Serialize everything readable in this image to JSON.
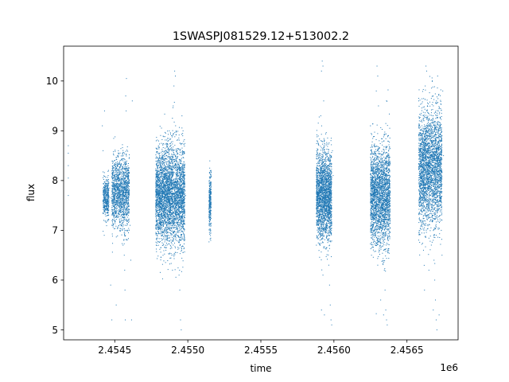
{
  "chart_data": {
    "type": "scatter",
    "title": "1SWASPJ081529.12+513002.2",
    "xlabel": "time",
    "ylabel": "flux",
    "x_offset_label": "1e6",
    "xlim": [
      2454150,
      2456850
    ],
    "ylim": [
      4.8,
      10.7
    ],
    "x_ticks": [
      2454500,
      2455000,
      2455500,
      2456000,
      2456500
    ],
    "x_tick_labels": [
      "2.4545",
      "2.4550",
      "2.4555",
      "2.4560",
      "2.4565"
    ],
    "y_ticks": [
      5,
      6,
      7,
      8,
      9,
      10
    ],
    "y_tick_labels": [
      "5",
      "6",
      "7",
      "8",
      "9",
      "10"
    ],
    "grid": false,
    "legend": "none",
    "marker_color": "#1f77b4",
    "series": [
      {
        "points": [
          [
            2454182,
            8.7
          ],
          [
            2454182,
            8.55
          ],
          [
            2454182,
            8.3
          ],
          [
            2454182,
            8.05
          ],
          [
            2454182,
            7.7
          ],
          [
            2454415,
            9.1
          ],
          [
            2454420,
            8.6
          ],
          [
            2454425,
            7.2
          ],
          [
            2454428,
            6.9
          ],
          [
            2454430,
            9.4
          ],
          [
            2454435,
            7.9
          ],
          [
            2454440,
            7.8
          ],
          [
            2454440,
            7.7
          ],
          [
            2454445,
            7.6
          ],
          [
            2454445,
            7.5
          ],
          [
            2454450,
            7.4
          ],
          [
            2454455,
            7.3
          ],
          [
            2454455,
            8.1
          ],
          [
            2454460,
            7.95
          ],
          [
            2454465,
            7.85
          ],
          [
            2454470,
            7.65
          ],
          [
            2454472,
            5.9
          ],
          [
            2454480,
            5.2
          ],
          [
            2454500,
            7.3
          ],
          [
            2454510,
            5.5
          ],
          [
            2454520,
            8.3
          ],
          [
            2454522,
            8.2
          ],
          [
            2454525,
            8.1
          ],
          [
            2454528,
            8.0
          ],
          [
            2454530,
            7.9
          ],
          [
            2454532,
            7.8
          ],
          [
            2454535,
            7.7
          ],
          [
            2454538,
            7.6
          ],
          [
            2454540,
            7.5
          ],
          [
            2454542,
            7.4
          ],
          [
            2454545,
            7.3
          ],
          [
            2454548,
            7.2
          ],
          [
            2454550,
            7.1
          ],
          [
            2454552,
            7.0
          ],
          [
            2454555,
            8.4
          ],
          [
            2454557,
            8.5
          ],
          [
            2454560,
            7.35
          ],
          [
            2454562,
            6.8
          ],
          [
            2454565,
            6.5
          ],
          [
            2454568,
            6.2
          ],
          [
            2454570,
            5.8
          ],
          [
            2454572,
            5.2
          ],
          [
            2454575,
            9.7
          ],
          [
            2454578,
            9.4
          ],
          [
            2454580,
            10.05
          ],
          [
            2454585,
            7.45
          ],
          [
            2454590,
            7.55
          ],
          [
            2454595,
            8.2
          ],
          [
            2454600,
            8.0
          ],
          [
            2454605,
            7.1
          ],
          [
            2454610,
            6.4
          ],
          [
            2454615,
            5.2
          ],
          [
            2454620,
            9.6
          ],
          [
            2454790,
            8.3
          ],
          [
            2454795,
            8.1
          ],
          [
            2454800,
            7.9
          ],
          [
            2454805,
            7.7
          ],
          [
            2454810,
            7.5
          ],
          [
            2454815,
            7.3
          ],
          [
            2454820,
            7.1
          ],
          [
            2454825,
            6.9
          ],
          [
            2454830,
            8.5
          ],
          [
            2454835,
            8.4
          ],
          [
            2454840,
            7.2
          ],
          [
            2454845,
            6.8
          ],
          [
            2454850,
            6.6
          ],
          [
            2454855,
            8.7
          ],
          [
            2454860,
            8.2
          ],
          [
            2454865,
            7.85
          ],
          [
            2454870,
            7.6
          ],
          [
            2454875,
            7.4
          ],
          [
            2454880,
            7.0
          ],
          [
            2454885,
            8.0
          ],
          [
            2454890,
            6.5
          ],
          [
            2454895,
            6.2
          ],
          [
            2454900,
            9.5
          ],
          [
            2454905,
            9.9
          ],
          [
            2454910,
            10.2
          ],
          [
            2454915,
            10.1
          ],
          [
            2454920,
            9.0
          ],
          [
            2454925,
            8.6
          ],
          [
            2454930,
            7.8
          ],
          [
            2454935,
            7.3
          ],
          [
            2454940,
            6.1
          ],
          [
            2454945,
            5.8
          ],
          [
            2454950,
            5.2
          ],
          [
            2454955,
            5.0
          ],
          [
            2454960,
            9.3
          ],
          [
            2454965,
            8.9
          ],
          [
            2454970,
            7.5
          ],
          [
            2454975,
            6.9
          ],
          [
            2454980,
            8.1
          ],
          [
            2454985,
            7.7
          ],
          [
            2455150,
            8.25
          ],
          [
            2455150,
            8.0
          ],
          [
            2455152,
            7.8
          ],
          [
            2455152,
            7.6
          ],
          [
            2455154,
            7.4
          ],
          [
            2455154,
            7.2
          ],
          [
            2455156,
            7.0
          ],
          [
            2455156,
            7.9
          ],
          [
            2455158,
            7.5
          ],
          [
            2455158,
            7.1
          ],
          [
            2455880,
            8.2
          ],
          [
            2455885,
            7.9
          ],
          [
            2455890,
            7.6
          ],
          [
            2455895,
            7.3
          ],
          [
            2455900,
            7.0
          ],
          [
            2455905,
            8.5
          ],
          [
            2455910,
            9.3
          ],
          [
            2455915,
            10.2
          ],
          [
            2455920,
            10.4
          ],
          [
            2455925,
            10.3
          ],
          [
            2455930,
            9.6
          ],
          [
            2455935,
            8.8
          ],
          [
            2455940,
            8.3
          ],
          [
            2455945,
            7.8
          ],
          [
            2455950,
            7.4
          ],
          [
            2455955,
            7.1
          ],
          [
            2455960,
            6.8
          ],
          [
            2455965,
            6.3
          ],
          [
            2455970,
            5.9
          ],
          [
            2455975,
            5.5
          ],
          [
            2455980,
            5.2
          ],
          [
            2455985,
            5.1
          ],
          [
            2455990,
            8.6
          ],
          [
            2455995,
            8.1
          ],
          [
            2455905,
            6.7
          ],
          [
            2455915,
            5.4
          ],
          [
            2455925,
            6.1
          ],
          [
            2455935,
            5.3
          ],
          [
            2456250,
            9.1
          ],
          [
            2456255,
            8.6
          ],
          [
            2456260,
            8.2
          ],
          [
            2456265,
            7.9
          ],
          [
            2456270,
            7.6
          ],
          [
            2456275,
            7.3
          ],
          [
            2456280,
            7.0
          ],
          [
            2456285,
            6.7
          ],
          [
            2456290,
            9.8
          ],
          [
            2456295,
            10.3
          ],
          [
            2456300,
            10.1
          ],
          [
            2456305,
            9.5
          ],
          [
            2456310,
            8.8
          ],
          [
            2456315,
            8.4
          ],
          [
            2456320,
            8.0
          ],
          [
            2456325,
            7.7
          ],
          [
            2456330,
            7.4
          ],
          [
            2456335,
            7.1
          ],
          [
            2456340,
            6.6
          ],
          [
            2456345,
            6.2
          ],
          [
            2456350,
            5.8
          ],
          [
            2456355,
            5.4
          ],
          [
            2456360,
            5.2
          ],
          [
            2456365,
            5.1
          ],
          [
            2456370,
            8.9
          ],
          [
            2456375,
            8.5
          ],
          [
            2456380,
            7.8
          ],
          [
            2456385,
            7.2
          ],
          [
            2456300,
            6.3
          ],
          [
            2456320,
            5.6
          ],
          [
            2456340,
            5.3
          ],
          [
            2456360,
            9.6
          ],
          [
            2456580,
            9.6
          ],
          [
            2456585,
            9.2
          ],
          [
            2456590,
            8.9
          ],
          [
            2456595,
            8.6
          ],
          [
            2456600,
            8.3
          ],
          [
            2456605,
            8.0
          ],
          [
            2456610,
            7.7
          ],
          [
            2456615,
            7.4
          ],
          [
            2456620,
            7.1
          ],
          [
            2456625,
            9.9
          ],
          [
            2456630,
            10.3
          ],
          [
            2456635,
            10.2
          ],
          [
            2456640,
            9.5
          ],
          [
            2456645,
            9.0
          ],
          [
            2456650,
            8.7
          ],
          [
            2456655,
            8.4
          ],
          [
            2456660,
            8.1
          ],
          [
            2456665,
            7.8
          ],
          [
            2456670,
            7.5
          ],
          [
            2456675,
            7.2
          ],
          [
            2456680,
            6.8
          ],
          [
            2456685,
            6.4
          ],
          [
            2456690,
            6.0
          ],
          [
            2456695,
            5.6
          ],
          [
            2456700,
            5.2
          ],
          [
            2456705,
            5.0
          ],
          [
            2456710,
            10.1
          ],
          [
            2456715,
            9.4
          ],
          [
            2456720,
            8.8
          ],
          [
            2456725,
            8.2
          ],
          [
            2456730,
            7.6
          ],
          [
            2456735,
            7.0
          ],
          [
            2456740,
            6.5
          ],
          [
            2456745,
            9.8
          ],
          [
            2456750,
            8.5
          ],
          [
            2456620,
            5.8
          ],
          [
            2456650,
            6.2
          ],
          [
            2456680,
            5.4
          ],
          [
            2456700,
            6.9
          ],
          [
            2456720,
            5.3
          ]
        ]
      }
    ],
    "dense_bands": [
      {
        "x_min": 2454420,
        "x_max": 2454460,
        "y_min": 7.3,
        "y_max": 8.0,
        "count": 380
      },
      {
        "x_min": 2454480,
        "x_max": 2454600,
        "y_min": 7.1,
        "y_max": 8.4,
        "count": 1400
      },
      {
        "x_min": 2454780,
        "x_max": 2454980,
        "y_min": 6.8,
        "y_max": 8.6,
        "count": 3600
      },
      {
        "x_min": 2455145,
        "x_max": 2455160,
        "y_min": 7.0,
        "y_max": 8.1,
        "count": 260
      },
      {
        "x_min": 2455880,
        "x_max": 2455985,
        "y_min": 6.9,
        "y_max": 8.5,
        "count": 2200
      },
      {
        "x_min": 2456250,
        "x_max": 2456385,
        "y_min": 6.8,
        "y_max": 8.6,
        "count": 2400
      },
      {
        "x_min": 2456580,
        "x_max": 2456740,
        "y_min": 7.2,
        "y_max": 9.3,
        "count": 2800
      }
    ]
  }
}
